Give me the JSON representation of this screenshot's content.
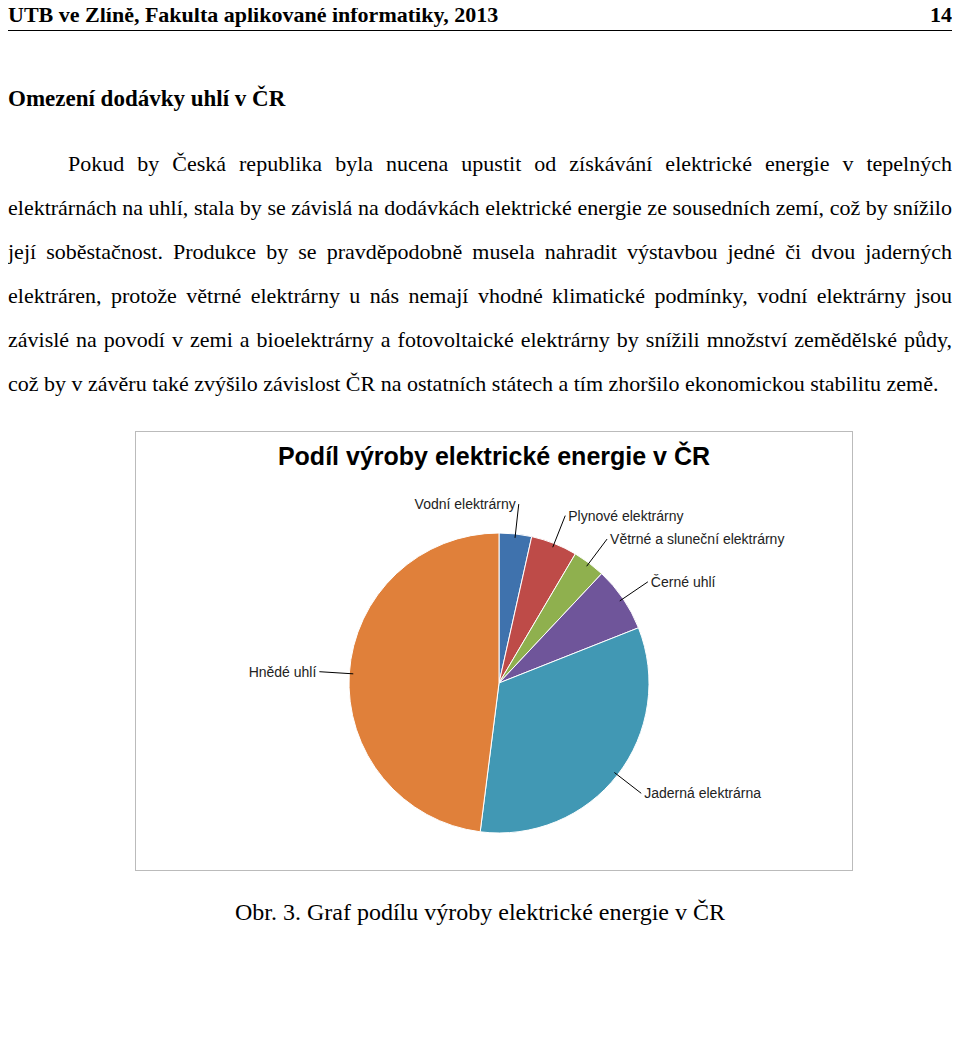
{
  "header": {
    "left": "UTB ve Zlíně, Fakulta aplikované informatiky, 2013",
    "page": 14
  },
  "heading": "Omezení dodávky uhlí v ČR",
  "paragraph": "Pokud by Česká republika byla nucena upustit od získávání elektrické energie v tepelných elektrárnách na uhlí, stala by se závislá na dodávkách elektrické energie ze sousedních zemí, což by snížilo její soběstačnost. Produkce by se pravděpodobně musela nahradit výstavbou jedné či dvou jaderných elektráren, protože větrné elektrárny u nás nemají vhodné klimatické podmínky, vodní elektrárny jsou závislé na povodí v zemi a bioelektrárny a fotovoltaické elektrárny by snížili množství zemědělské půdy, což by v závěru také zvýšilo závislost ČR na ostatních státech a tím zhoršilo ekonomickou stabilitu země.",
  "chart_data": {
    "type": "pie",
    "title": "Podíl výroby elektrické energie v ČR",
    "categories": [
      "Vodní elektrárny",
      "Plynové elektrárny",
      "Větrné a sluneční elektrárny",
      "Černé uhlí",
      "Jaderná elektrárna",
      "Hnědé uhlí"
    ],
    "values": [
      3.5,
      5,
      3.5,
      7,
      33,
      48
    ],
    "colors": [
      "#3f72ad",
      "#be4b48",
      "#8fb04e",
      "#6f559a",
      "#4198b4",
      "#e0803a"
    ]
  },
  "caption": "Obr. 3. Graf podílu výroby elektrické energie v ČR"
}
